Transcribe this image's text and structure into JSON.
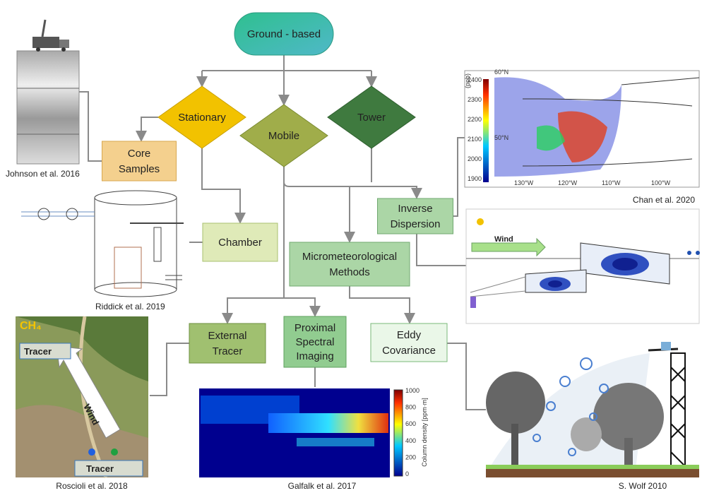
{
  "nodes": [
    {
      "label": [
        "Ground - based"
      ]
    },
    {
      "label": [
        "Stationary"
      ]
    },
    {
      "label": [
        "Mobile"
      ]
    },
    {
      "label": [
        "Tower"
      ]
    },
    {
      "label": [
        "Core",
        "Samples"
      ]
    },
    {
      "label": [
        "Chamber"
      ]
    },
    {
      "label": [
        "Inverse",
        "Dispersion"
      ]
    },
    {
      "label": [
        "Micrometeorological",
        "Methods"
      ]
    },
    {
      "label": [
        "External",
        "Tracer"
      ]
    },
    {
      "label": [
        "Proximal",
        "Spectral",
        "Imaging"
      ]
    },
    {
      "label": [
        "Eddy",
        "Covariance"
      ]
    }
  ],
  "captions": [
    "Johnson et al. 2016",
    "Riddick et al. 2019",
    "Chan et al.  2020",
    "Roscioli et al. 2018",
    "Galfalk et al. 2017",
    "S. Wolf 2010"
  ],
  "chan_inset": {
    "unit": "(ppb)",
    "scale": [
      "2400",
      "2300",
      "2200",
      "2100",
      "2000",
      "1900"
    ],
    "latitudes": [
      "60°N",
      "50°N"
    ],
    "longitudes": [
      "130°W",
      "120°W",
      "110°W",
      "100°W"
    ]
  },
  "wind_inset": {
    "label": "Wind"
  },
  "roscioli_inset": {
    "gas": "CH₄",
    "tracer_top": "Tracer",
    "wind": "Wind",
    "tracer_bottom": "Tracer"
  },
  "galfalk_inset": {
    "scale": [
      "1000",
      "800",
      "600",
      "400",
      "200",
      "0"
    ],
    "axis_label": "Column density [ppm·m]"
  }
}
